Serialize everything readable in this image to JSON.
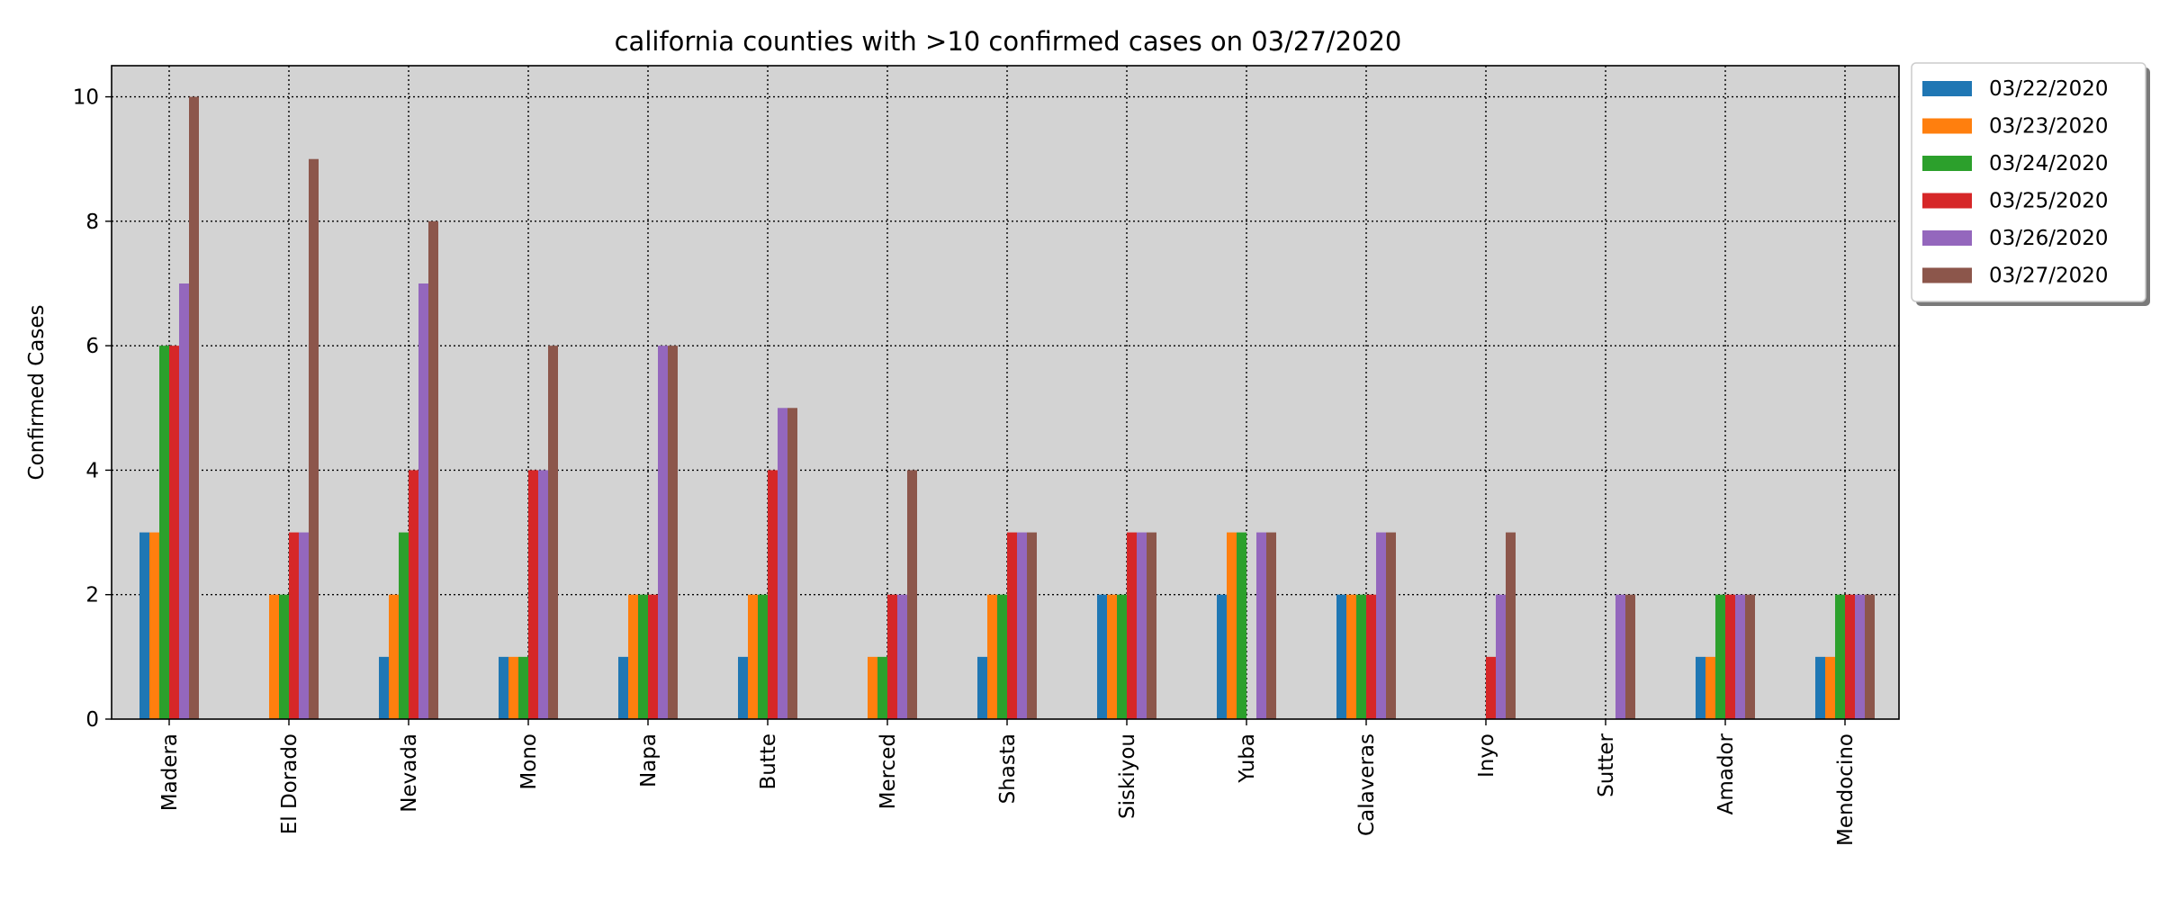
{
  "chart_data": {
    "type": "bar",
    "title": "california counties with >10 confirmed cases on 03/27/2020",
    "xlabel": "",
    "ylabel": "Confirmed Cases",
    "ylim": [
      0,
      10.5
    ],
    "yticks": [
      0,
      2,
      4,
      6,
      8,
      10
    ],
    "grid": true,
    "legend_position": "outside top-right",
    "background": "#d3d3d3",
    "categories": [
      "Madera",
      "El Dorado",
      "Nevada",
      "Mono",
      "Napa",
      "Butte",
      "Merced",
      "Shasta",
      "Siskiyou",
      "Yuba",
      "Calaveras",
      "Inyo",
      "Sutter",
      "Amador",
      "Mendocino"
    ],
    "series": [
      {
        "name": "03/22/2020",
        "color": "#1f77b4",
        "values": [
          3,
          0,
          1,
          1,
          1,
          1,
          0,
          1,
          2,
          2,
          2,
          0,
          0,
          1,
          1
        ]
      },
      {
        "name": "03/23/2020",
        "color": "#ff7f0e",
        "values": [
          3,
          2,
          2,
          1,
          2,
          2,
          1,
          2,
          2,
          3,
          2,
          0,
          0,
          1,
          1
        ]
      },
      {
        "name": "03/24/2020",
        "color": "#2ca02c",
        "values": [
          6,
          2,
          3,
          1,
          2,
          2,
          1,
          2,
          2,
          3,
          2,
          0,
          0,
          2,
          2
        ]
      },
      {
        "name": "03/25/2020",
        "color": "#d62728",
        "values": [
          6,
          3,
          4,
          4,
          2,
          4,
          2,
          3,
          3,
          0,
          2,
          1,
          0,
          2,
          2
        ]
      },
      {
        "name": "03/26/2020",
        "color": "#9467bd",
        "values": [
          7,
          3,
          7,
          4,
          6,
          5,
          2,
          3,
          3,
          3,
          3,
          2,
          2,
          2,
          2
        ]
      },
      {
        "name": "03/27/2020",
        "color": "#8c564b",
        "values": [
          10,
          9,
          8,
          6,
          6,
          5,
          4,
          3,
          3,
          3,
          3,
          3,
          2,
          2,
          2
        ]
      }
    ]
  }
}
